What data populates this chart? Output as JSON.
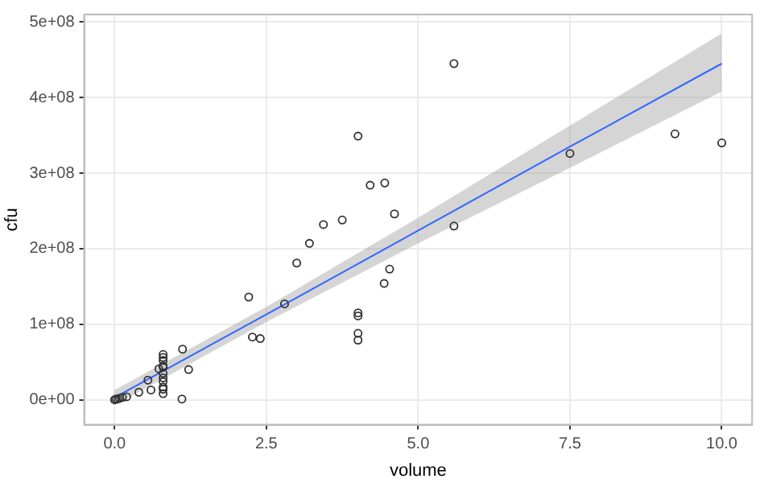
{
  "chart_data": {
    "type": "scatter",
    "xlabel": "volume",
    "ylabel": "cfu",
    "xlim": [
      -0.5,
      10.5
    ],
    "ylim": [
      -33000000,
      510000000
    ],
    "xticks": [
      {
        "value": 0,
        "label": "0.0"
      },
      {
        "value": 2.5,
        "label": "2.5"
      },
      {
        "value": 5,
        "label": "5.0"
      },
      {
        "value": 7.5,
        "label": "7.5"
      },
      {
        "value": 10,
        "label": "10.0"
      }
    ],
    "yticks": [
      {
        "value": 0,
        "label": "0e+00"
      },
      {
        "value": 100000000,
        "label": "1e+08"
      },
      {
        "value": 200000000,
        "label": "2e+08"
      },
      {
        "value": 300000000,
        "label": "3e+08"
      },
      {
        "value": 400000000,
        "label": "4e+08"
      },
      {
        "value": 500000000,
        "label": "5e+08"
      }
    ],
    "grid": true,
    "legend": false,
    "series": [
      {
        "marker": "circle",
        "color": "#333333",
        "x": [
          0,
          0.02,
          0.05,
          0.08,
          0.13,
          0.2,
          0.4,
          0.55,
          0.6,
          0.73,
          0.8,
          0.8,
          0.8,
          0.8,
          0.8,
          0.8,
          0.8,
          0.8,
          0.8,
          0.8,
          0.8,
          1.11,
          1.12,
          1.22,
          2.21,
          2.27,
          2.4,
          2.8,
          3.0,
          3.21,
          3.44,
          3.75,
          4.01,
          4.01,
          4.01,
          4.01,
          4.01,
          4.21,
          4.44,
          4.45,
          4.53,
          4.61,
          5.59,
          5.59,
          7.5,
          9.23,
          10.0
        ],
        "values": [
          0,
          1000000,
          1000000,
          2000000,
          3000000,
          4000000,
          10000000,
          26000000,
          13000000,
          41000000,
          60000000,
          56000000,
          52000000,
          45000000,
          43000000,
          35000000,
          29000000,
          24000000,
          17000000,
          14000000,
          8000000,
          1000000,
          67000000,
          40000000,
          136000000,
          83000000,
          81000000,
          127000000,
          181000000,
          207000000,
          232000000,
          238000000,
          349000000,
          115000000,
          111000000,
          88000000,
          79000000,
          284000000,
          154000000,
          287000000,
          173000000,
          246000000,
          445000000,
          230000000,
          326000000,
          352000000,
          340000000
        ]
      },
      {
        "type": "line",
        "marker": "none",
        "line_style": "solid",
        "color": "#3366ff",
        "x": [
          0,
          2.5,
          5,
          7.5,
          10
        ],
        "values": [
          3000000,
          113000000,
          224000000,
          335000000,
          445000000
        ],
        "lower": [
          -7000000,
          103000000,
          207000000,
          307000000,
          408000000
        ],
        "upper": [
          13000000,
          123000000,
          241000000,
          363000000,
          485000000
        ]
      }
    ]
  }
}
